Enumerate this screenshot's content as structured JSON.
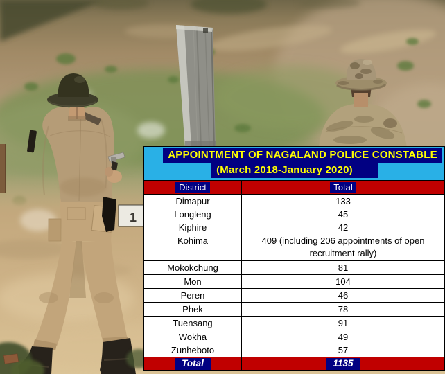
{
  "header": {
    "title_line1": "APPOINTMENT OF NAGALAND POLICE CONSTABLE",
    "title_line2": "(March 2018-January 2020)"
  },
  "table": {
    "columns": {
      "district": "District",
      "total": "Total"
    },
    "rows": [
      {
        "district": "Dimapur",
        "total": "133",
        "rule": false,
        "tall": false
      },
      {
        "district": "Longleng",
        "total": "45",
        "rule": false,
        "tall": false
      },
      {
        "district": "Kiphire",
        "total": "42",
        "rule": false,
        "tall": false
      },
      {
        "district": "Kohima",
        "total": "409 (including 206 appointments of open recruitment rally)",
        "rule": true,
        "tall": true
      },
      {
        "district": "Mokokchung",
        "total": "81",
        "rule": true,
        "tall": false
      },
      {
        "district": "Mon",
        "total": "104",
        "rule": true,
        "tall": false
      },
      {
        "district": "Peren",
        "total": "46",
        "rule": true,
        "tall": false
      },
      {
        "district": "Phek",
        "total": "78",
        "rule": true,
        "tall": false
      },
      {
        "district": "Tuensang",
        "total": "91",
        "rule": true,
        "tall": false
      },
      {
        "district": "Wokha",
        "total": "49",
        "rule": false,
        "tall": false
      },
      {
        "district": "Zunheboto",
        "total": "57",
        "rule": true,
        "tall": false
      }
    ],
    "footer": {
      "label": "Total",
      "value": "1135"
    }
  },
  "photo": {
    "description": "Rear view of a Nagaland police trainee in khaki uniform and boonie hat firing a pistol at a grey wooden target board on a dry scrub hillside range; a second officer in camouflage boonie hat observes at right; a small numbered target marker (1) stands downrange",
    "numbered_target_label": "1"
  },
  "colors": {
    "band_cyan": "#29b0e6",
    "highlight_navy": "#010082",
    "title_yellow": "#ffff00",
    "row_red": "#c00000",
    "header_text": "#ffffff",
    "body_text": "#000000",
    "border": "#000000"
  },
  "chart_data": {
    "type": "table",
    "title": "APPOINTMENT OF NAGALAND POLICE CONSTABLE (March 2018-January 2020)",
    "columns": [
      "District",
      "Total"
    ],
    "rows": [
      [
        "Dimapur",
        "133"
      ],
      [
        "Longleng",
        "45"
      ],
      [
        "Kiphire",
        "42"
      ],
      [
        "Kohima",
        "409 (including 206 appointments of open recruitment rally)"
      ],
      [
        "Mokokchung",
        "81"
      ],
      [
        "Mon",
        "104"
      ],
      [
        "Peren",
        "46"
      ],
      [
        "Phek",
        "78"
      ],
      [
        "Tuensang",
        "91"
      ],
      [
        "Wokha",
        "49"
      ],
      [
        "Zunheboto",
        "57"
      ]
    ],
    "footer": [
      "Total",
      "1135"
    ]
  }
}
